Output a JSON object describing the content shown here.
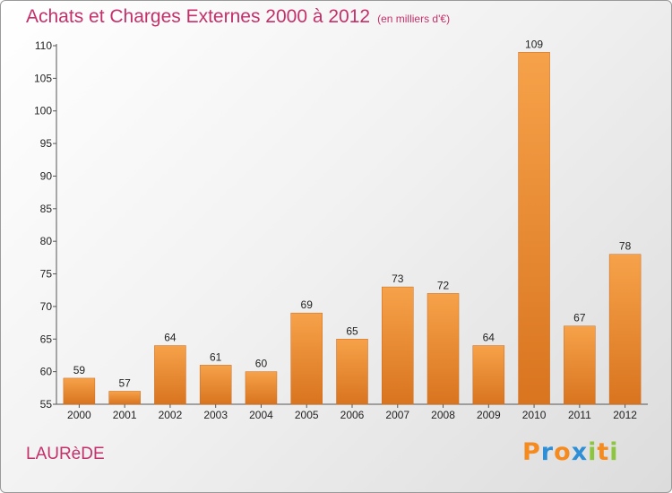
{
  "header": {
    "title": "Achats et Charges Externes 2000 à 2012",
    "unit": "(en milliers d'€)"
  },
  "footer": {
    "commune": "LAURèDE",
    "brand": "Proxiti"
  },
  "colors": {
    "title": "#c4306a",
    "bar_light": "#f6a24a",
    "bar_dark": "#d9741f",
    "brand_letters": [
      "#f58a1f",
      "#2e8fd6",
      "#f58a1f",
      "#2e8fd6",
      "#8cc63e",
      "#f58a1f",
      "#8cc63e"
    ]
  },
  "chart_data": {
    "type": "bar",
    "title": "Achats et Charges Externes 2000 à 2012",
    "xlabel": "",
    "ylabel": "",
    "categories": [
      "2000",
      "2001",
      "2002",
      "2003",
      "2004",
      "2005",
      "2006",
      "2007",
      "2008",
      "2009",
      "2010",
      "2011",
      "2012"
    ],
    "values": [
      59,
      57,
      64,
      61,
      60,
      69,
      65,
      73,
      72,
      64,
      109,
      67,
      78
    ],
    "ylim": [
      55,
      110
    ],
    "yticks": [
      55,
      60,
      65,
      70,
      75,
      80,
      85,
      90,
      95,
      100,
      105,
      110
    ],
    "grid": false,
    "legend": "none"
  }
}
